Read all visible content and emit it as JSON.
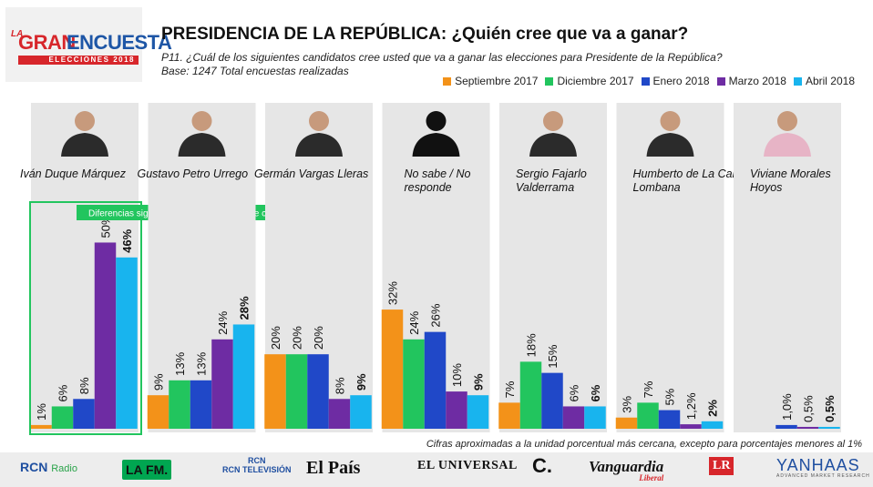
{
  "logo": {
    "la": "LA",
    "gran": "GRAN",
    "encuesta": "ENCUESTA",
    "elecciones": "ELECCIONES 2018"
  },
  "header": {
    "title": "PRESIDENCIA DE LA REPÚBLICA: ¿Quién cree que va a ganar?",
    "question": "P11. ¿Cuál de los siguientes candidatos cree usted que va a ganar las elecciones para Presidente de la República?",
    "base": "Base: 1247 Total encuestas realizadas"
  },
  "legend": [
    {
      "label": "Septiembre 2017",
      "color": "#f39219"
    },
    {
      "label": "Diciembre 2017",
      "color": "#22c55e"
    },
    {
      "label": "Enero 2018",
      "color": "#2048c8"
    },
    {
      "label": "Marzo 2018",
      "color": "#6e2ca3"
    },
    {
      "label": "Abril 2018",
      "color": "#18b4ee"
    }
  ],
  "chart_data": {
    "type": "bar",
    "series_names": [
      "Septiembre 2017",
      "Diciembre 2017",
      "Enero 2018",
      "Marzo 2018",
      "Abril 2018"
    ],
    "ylim": [
      0,
      55
    ],
    "highlight_note": "Diferencias significativas frente al resto de candidatos",
    "groups": [
      {
        "name": "Iván Duque Márquez",
        "values": [
          1,
          6,
          8,
          50,
          46
        ],
        "labels": [
          "1%",
          "6%",
          "8%",
          "50%",
          "46%"
        ],
        "highlight": true
      },
      {
        "name": "Gustavo Petro Urrego",
        "values": [
          9,
          13,
          13,
          24,
          28
        ],
        "labels": [
          "9%",
          "13%",
          "13%",
          "24%",
          "28%"
        ]
      },
      {
        "name": "Germán Vargas Lleras",
        "values": [
          20,
          20,
          20,
          8,
          9
        ],
        "labels": [
          "20%",
          "20%",
          "20%",
          "8%",
          "9%"
        ]
      },
      {
        "name": "No sabe / No responde",
        "values": [
          32,
          24,
          26,
          10,
          9
        ],
        "labels": [
          "32%",
          "24%",
          "26%",
          "10%",
          "9%"
        ]
      },
      {
        "name": "Sergio Fajarlo Valderrama",
        "values": [
          7,
          18,
          15,
          6,
          6
        ],
        "labels": [
          "7%",
          "18%",
          "15%",
          "6%",
          "6%"
        ]
      },
      {
        "name": "Humberto de La Calle Lombana",
        "values": [
          3,
          7,
          5,
          1.2,
          2
        ],
        "labels": [
          "3%",
          "7%",
          "5%",
          "1,2%",
          "2%"
        ]
      },
      {
        "name": "Viviane Morales Hoyos",
        "values": [
          null,
          null,
          1.0,
          0.5,
          0.5
        ],
        "labels": [
          "",
          "",
          "1,0%",
          "0,5%",
          "0,5%"
        ]
      }
    ]
  },
  "footnote": "Cifras aproximadas a la unidad porcentual más cercana, excepto para porcentajes menores al 1%",
  "sponsors": {
    "rcn_radio": "Radio",
    "lafm": "LA FM.",
    "rcn_tv": "RCN TELEVISIÓN",
    "el_pais": "El País",
    "el_universal": "EL UNIVERSAL",
    "el_colombiano": "C.",
    "vanguardia": "Vanguardia",
    "vanguardia_sub": "Liberal",
    "lr": "LR",
    "yanhaas": "YANHAAS",
    "yanhaas_sub": "ADVANCED MARKET RESEARCH"
  }
}
